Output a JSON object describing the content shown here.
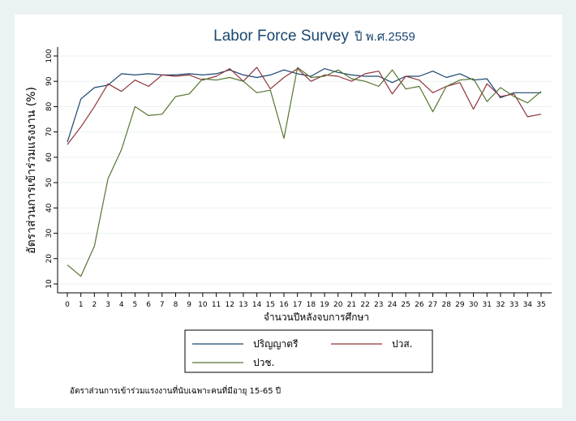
{
  "chart_data": {
    "type": "line",
    "title": "Labor Force Survey",
    "title_suffix": "ปี พ.ศ.2559",
    "xlabel": "จำนวนปีหลังจบการศึกษา",
    "ylabel": "อัตราส่วนการเข้าร่วมแรงงาน (%)",
    "xlim": [
      0,
      35
    ],
    "ylim": [
      10,
      100
    ],
    "x_ticks": [
      0,
      1,
      2,
      3,
      4,
      5,
      6,
      7,
      8,
      9,
      10,
      11,
      12,
      13,
      14,
      15,
      16,
      17,
      18,
      19,
      20,
      21,
      22,
      23,
      24,
      25,
      26,
      27,
      28,
      29,
      30,
      31,
      32,
      33,
      34,
      35
    ],
    "y_ticks": [
      10,
      20,
      30,
      40,
      50,
      60,
      70,
      80,
      90,
      100
    ],
    "grid": true,
    "legend_position": "bottom",
    "note": "อัตราส่วนการเข้าร่วมแรงงานที่นับเฉพาะคนที่มีอายุ 15-65 ปี",
    "x": [
      0,
      1,
      2,
      3,
      4,
      5,
      6,
      7,
      8,
      9,
      10,
      11,
      12,
      13,
      14,
      15,
      16,
      17,
      18,
      19,
      20,
      21,
      22,
      23,
      24,
      25,
      26,
      27,
      28,
      29,
      30,
      31,
      32,
      33,
      34,
      35
    ],
    "series": [
      {
        "name": "ปริญญาตรี",
        "color": "#1a476f",
        "values": [
          66,
          83,
          87.5,
          88.5,
          93,
          92.5,
          93,
          92.5,
          92.5,
          93,
          92.5,
          93,
          94.5,
          92.5,
          91.5,
          92.5,
          94.5,
          93,
          92,
          95,
          93.5,
          92.5,
          92,
          92,
          89.5,
          92,
          92,
          94,
          91.5,
          93,
          90.5,
          91,
          83.5,
          85.5,
          85.5,
          85.5
        ]
      },
      {
        "name": "ปวส.",
        "color": "#90353b",
        "values": [
          65,
          72,
          80,
          89,
          86,
          90.5,
          88,
          92.5,
          92,
          92.5,
          90.5,
          92,
          95,
          90,
          95.5,
          87,
          91.5,
          95,
          90,
          92.5,
          92,
          90,
          93,
          94,
          85,
          92,
          90.5,
          85.5,
          88,
          89.5,
          79,
          89,
          84,
          85,
          76,
          77
        ]
      },
      {
        "name": "ปวช.",
        "color": "#55752f",
        "values": [
          17.5,
          13,
          25,
          51.5,
          63,
          80,
          76.5,
          77,
          84,
          85,
          91,
          90.5,
          91.5,
          90,
          85.5,
          86.5,
          67.5,
          95.5,
          91.5,
          92,
          94.5,
          91,
          90,
          88,
          94.5,
          87,
          88,
          78,
          88,
          90.5,
          91,
          82,
          87.5,
          84,
          81.5,
          86
        ]
      }
    ]
  }
}
